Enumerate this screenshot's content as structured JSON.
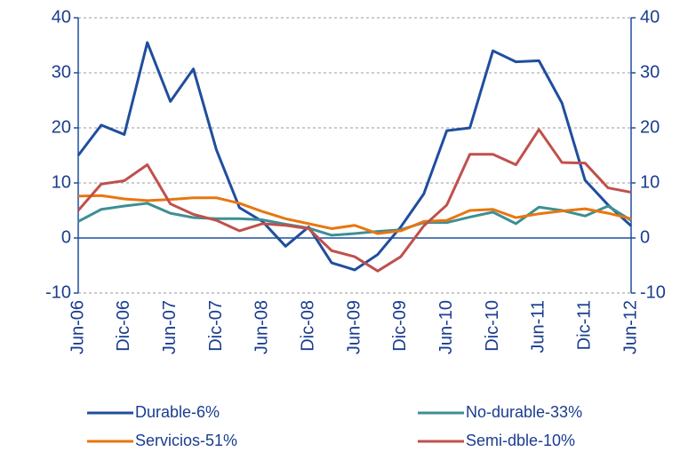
{
  "chart_data": {
    "type": "line",
    "categories": [
      "Jun-06",
      null,
      "Dic-06",
      null,
      "Jun-07",
      null,
      "Dic-07",
      null,
      "Jun-08",
      null,
      "Dic-08",
      null,
      "Jun-09",
      null,
      "Dic-09",
      null,
      "Jun-10",
      null,
      "Dic-10",
      null,
      "Jun-11",
      null,
      "Dic-11",
      null,
      "Jun-12"
    ],
    "series": [
      {
        "name": "Durable-6%",
        "color": "#1f4e9e",
        "values": [
          15,
          20.5,
          18.8,
          35.5,
          24.8,
          30.7,
          16,
          5.5,
          3,
          -1.5,
          2,
          -4.5,
          -5.8,
          -3,
          2,
          8,
          19.5,
          20,
          34,
          32,
          32.2,
          24.5,
          10.5,
          6,
          2.2
        ]
      },
      {
        "name": "No-durable-33%",
        "color": "#3d8f94",
        "values": [
          3,
          5.2,
          5.8,
          6.3,
          4.5,
          3.7,
          3.5,
          3.5,
          3.3,
          2.5,
          1.8,
          0.5,
          0.8,
          1.2,
          1.5,
          2.8,
          2.8,
          3.8,
          4.7,
          2.6,
          5.6,
          5,
          4,
          5.8,
          3.2
        ]
      },
      {
        "name": "Servicios-51%",
        "color": "#e8760f",
        "values": [
          7.6,
          7.7,
          7.1,
          6.8,
          7,
          7.3,
          7.3,
          6.3,
          4.8,
          3.5,
          2.6,
          1.7,
          2.3,
          0.8,
          1.3,
          3,
          3.2,
          5,
          5.2,
          3.7,
          4.4,
          4.9,
          5.3,
          4.5,
          3.5
        ]
      },
      {
        "name": "Semi-dble-10%",
        "color": "#c0504d",
        "values": [
          5,
          9.8,
          10.4,
          13.3,
          6.2,
          4.3,
          3.2,
          1.3,
          2.6,
          2.3,
          1.7,
          -2.3,
          -3.4,
          -6,
          -3.4,
          2.2,
          6,
          15.2,
          15.2,
          13.3,
          19.7,
          13.7,
          13.6,
          9.1,
          8.3
        ]
      }
    ],
    "ylim": [
      -10,
      40
    ],
    "yticks": [
      -10,
      0,
      10,
      20,
      30,
      40
    ],
    "y2lim": [
      -10,
      40
    ],
    "y2ticks": [
      -10,
      0,
      10,
      20,
      30,
      40
    ],
    "grid": true
  }
}
